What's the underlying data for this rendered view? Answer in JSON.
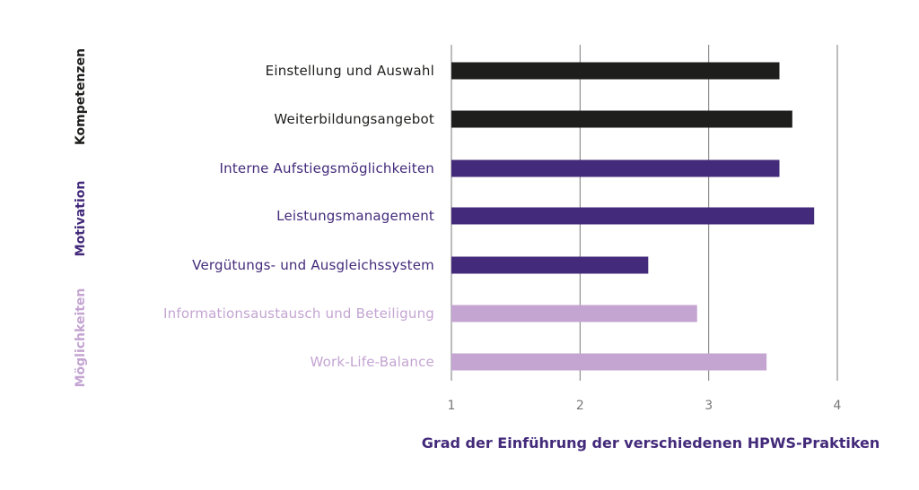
{
  "chart_data": {
    "type": "bar",
    "orientation": "horizontal",
    "categories": [
      "Einstellung und Auswahl",
      "Weiterbildungsangebot",
      "Interne Aufstiegsmöglichkeiten",
      "Leistungsmanagement",
      "Vergütungs- und Ausgleichssystem",
      "Informationsaustausch und Beteiligung",
      "Work-Life-Balance"
    ],
    "values": [
      3.55,
      3.65,
      3.55,
      3.82,
      2.53,
      2.91,
      3.45
    ],
    "bar_groups": [
      "Kompetenzen",
      "Kompetenzen",
      "Motivation",
      "Motivation",
      "Motivation",
      "Möglichkeiten",
      "Möglichkeiten"
    ],
    "groups": [
      {
        "name": "Kompetenzen",
        "color": "#1e1e1c",
        "label_color": "#1e1e1c"
      },
      {
        "name": "Motivation",
        "color": "#432a7a",
        "label_color": "#432a7a"
      },
      {
        "name": "Möglichkeiten",
        "color": "#c4a5d2",
        "label_color": "#c4a5d2"
      }
    ],
    "xlim": [
      1,
      4
    ],
    "x_ticks": [
      "1",
      "2",
      "3",
      "4"
    ],
    "xlabel": "Grad der Einführung der verschiedenen HPWS-Praktiken",
    "xlabel_color": "#432a7a",
    "grid": true,
    "gridline_color": "#7a7a7a"
  }
}
